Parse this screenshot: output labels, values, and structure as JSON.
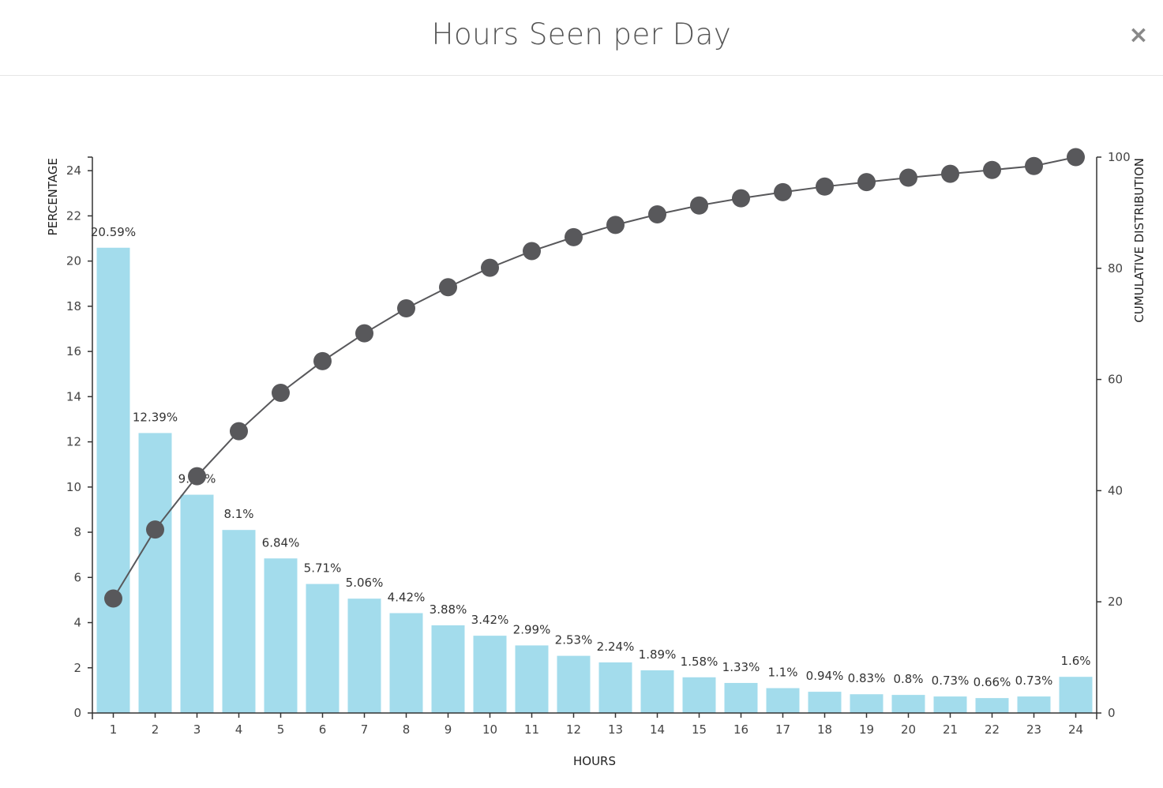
{
  "modal": {
    "title": "Hours Seen per Day",
    "close_label": "×"
  },
  "colors": {
    "bar": "#a3dcec",
    "line": "#58585b",
    "axis": "#333333",
    "label": "#333333"
  },
  "chart_data": {
    "type": "bar",
    "categories": [
      "1",
      "2",
      "3",
      "4",
      "5",
      "6",
      "7",
      "8",
      "9",
      "10",
      "11",
      "12",
      "13",
      "14",
      "15",
      "16",
      "17",
      "18",
      "19",
      "20",
      "21",
      "22",
      "23",
      "24"
    ],
    "series": [
      {
        "values": [
          20.59,
          12.39,
          9.66,
          8.1,
          6.84,
          5.71,
          5.06,
          4.42,
          3.88,
          3.42,
          2.99,
          2.53,
          2.24,
          1.89,
          1.58,
          1.33,
          1.1,
          0.94,
          0.83,
          0.8,
          0.73,
          0.66,
          0.73,
          1.6
        ],
        "data_labels": [
          "20.59%",
          "12.39%",
          "9.66%",
          "8.1%",
          "6.84%",
          "5.71%",
          "5.06%",
          "4.42%",
          "3.88%",
          "3.42%",
          "2.99%",
          "2.53%",
          "2.24%",
          "1.89%",
          "1.58%",
          "1.33%",
          "1.1%",
          "0.94%",
          "0.83%",
          "0.8%",
          "0.73%",
          "0.66%",
          "0.73%",
          "1.6%"
        ],
        "axis": "left",
        "type": "bar"
      },
      {
        "values": [
          20.6,
          33.0,
          42.6,
          50.7,
          57.6,
          63.3,
          68.3,
          72.8,
          76.6,
          80.1,
          83.1,
          85.6,
          87.8,
          89.7,
          91.3,
          92.6,
          93.7,
          94.7,
          95.5,
          96.3,
          97.0,
          97.7,
          98.4,
          100.0
        ],
        "axis": "right",
        "type": "line"
      }
    ],
    "xlabel": "HOURS",
    "ylabel": "PERCENTAGE",
    "y2label": "CUMULATIVE DISTRIBUTION",
    "ylim": [
      0,
      24.6
    ],
    "y2lim": [
      0,
      100
    ],
    "yticks": [
      0,
      2,
      4,
      6,
      8,
      10,
      12,
      14,
      16,
      18,
      20,
      22,
      24
    ],
    "y2ticks": [
      0,
      20,
      40,
      60,
      80,
      100
    ],
    "grid": false,
    "legend": "none"
  }
}
